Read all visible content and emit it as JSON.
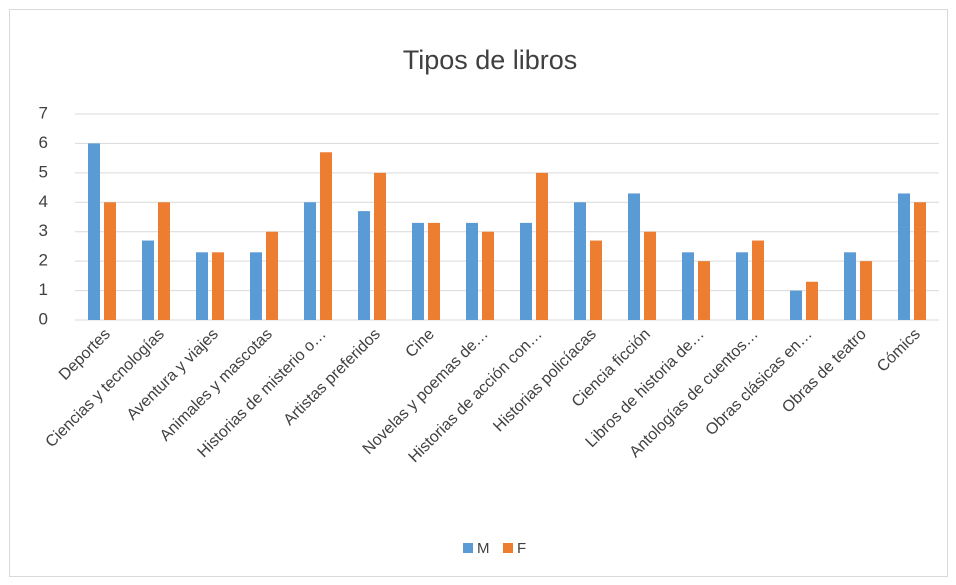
{
  "chart_data": {
    "type": "bar",
    "title": "Tipos de libros",
    "categories": [
      "Deportes",
      "Ciencias y tecnologías",
      "Aventura y viajes",
      "Animales y mascotas",
      "Historias de misterio o…",
      "Artistas preferidos",
      "Cine",
      "Novelas y poemas de…",
      "Historias de acción con…",
      "Historias policíacas",
      "Ciencia ficción",
      "Libros de historia de…",
      "Antologías de cuentos…",
      "Obras clásicas en…",
      "Obras de teatro",
      "Cómics"
    ],
    "series": [
      {
        "name": "M",
        "color": "#5b9bd5",
        "values": [
          6,
          2.7,
          2.3,
          2.3,
          4,
          3.7,
          3.3,
          3.3,
          3.3,
          4,
          4.3,
          2.3,
          2.3,
          1,
          2.3,
          4.3
        ]
      },
      {
        "name": "F",
        "color": "#ed7d31",
        "values": [
          4,
          4,
          2.3,
          3,
          5.7,
          5,
          3.3,
          3,
          5,
          2.7,
          3,
          2,
          2.7,
          1.3,
          2,
          4
        ]
      }
    ],
    "ylim": [
      0,
      7
    ],
    "yticks": [
      0,
      1,
      2,
      3,
      4,
      5,
      6,
      7
    ],
    "grid": true,
    "legend": "bottom"
  }
}
